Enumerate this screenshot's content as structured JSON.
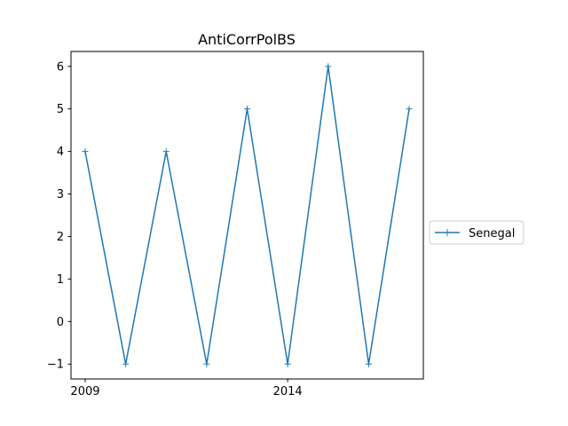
{
  "chart_data": {
    "type": "line",
    "title": "AntiCorrPolBS",
    "xlabel": "",
    "ylabel": "",
    "x": [
      2009,
      2010,
      2011,
      2012,
      2013,
      2014,
      2015,
      2016,
      2017
    ],
    "xlim": [
      2008.65,
      2017.35
    ],
    "ylim": [
      -1.35,
      6.35
    ],
    "xticks": [
      2009,
      2014
    ],
    "xtick_labels": [
      "2009",
      "2014"
    ],
    "yticks": [
      -1,
      0,
      1,
      2,
      3,
      4,
      5,
      6
    ],
    "ytick_labels": [
      "−1",
      "0",
      "1",
      "2",
      "3",
      "4",
      "5",
      "6"
    ],
    "grid": false,
    "legend_position": "right",
    "series": [
      {
        "name": "Senegal",
        "color": "#1f77b4",
        "marker": "+",
        "values": [
          4,
          -1,
          4,
          -1,
          5,
          -1,
          6,
          -1,
          5
        ]
      }
    ]
  }
}
